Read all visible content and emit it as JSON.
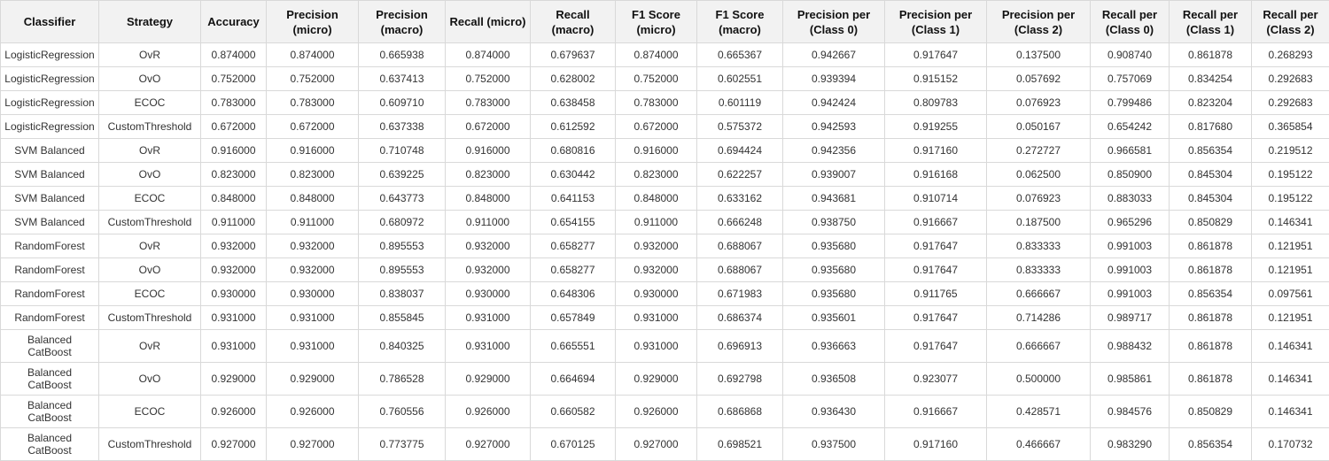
{
  "table": {
    "headers": [
      "Classifier",
      "Strategy",
      "Accuracy",
      "Precision (micro)",
      "Precision (macro)",
      "Recall (micro)",
      "Recall (macro)",
      "F1 Score (micro)",
      "F1 Score (macro)",
      "Precision per (Class 0)",
      "Precision per (Class 1)",
      "Precision per (Class 2)",
      "Recall per (Class 0)",
      "Recall per (Class 1)",
      "Recall per (Class 2)"
    ],
    "rows": [
      [
        "LogisticRegression",
        "OvR",
        "0.874000",
        "0.874000",
        "0.665938",
        "0.874000",
        "0.679637",
        "0.874000",
        "0.665367",
        "0.942667",
        "0.917647",
        "0.137500",
        "0.908740",
        "0.861878",
        "0.268293"
      ],
      [
        "LogisticRegression",
        "OvO",
        "0.752000",
        "0.752000",
        "0.637413",
        "0.752000",
        "0.628002",
        "0.752000",
        "0.602551",
        "0.939394",
        "0.915152",
        "0.057692",
        "0.757069",
        "0.834254",
        "0.292683"
      ],
      [
        "LogisticRegression",
        "ECOC",
        "0.783000",
        "0.783000",
        "0.609710",
        "0.783000",
        "0.638458",
        "0.783000",
        "0.601119",
        "0.942424",
        "0.809783",
        "0.076923",
        "0.799486",
        "0.823204",
        "0.292683"
      ],
      [
        "LogisticRegression",
        "CustomThreshold",
        "0.672000",
        "0.672000",
        "0.637338",
        "0.672000",
        "0.612592",
        "0.672000",
        "0.575372",
        "0.942593",
        "0.919255",
        "0.050167",
        "0.654242",
        "0.817680",
        "0.365854"
      ],
      [
        "SVM Balanced",
        "OvR",
        "0.916000",
        "0.916000",
        "0.710748",
        "0.916000",
        "0.680816",
        "0.916000",
        "0.694424",
        "0.942356",
        "0.917160",
        "0.272727",
        "0.966581",
        "0.856354",
        "0.219512"
      ],
      [
        "SVM Balanced",
        "OvO",
        "0.823000",
        "0.823000",
        "0.639225",
        "0.823000",
        "0.630442",
        "0.823000",
        "0.622257",
        "0.939007",
        "0.916168",
        "0.062500",
        "0.850900",
        "0.845304",
        "0.195122"
      ],
      [
        "SVM Balanced",
        "ECOC",
        "0.848000",
        "0.848000",
        "0.643773",
        "0.848000",
        "0.641153",
        "0.848000",
        "0.633162",
        "0.943681",
        "0.910714",
        "0.076923",
        "0.883033",
        "0.845304",
        "0.195122"
      ],
      [
        "SVM Balanced",
        "CustomThreshold",
        "0.911000",
        "0.911000",
        "0.680972",
        "0.911000",
        "0.654155",
        "0.911000",
        "0.666248",
        "0.938750",
        "0.916667",
        "0.187500",
        "0.965296",
        "0.850829",
        "0.146341"
      ],
      [
        "RandomForest",
        "OvR",
        "0.932000",
        "0.932000",
        "0.895553",
        "0.932000",
        "0.658277",
        "0.932000",
        "0.688067",
        "0.935680",
        "0.917647",
        "0.833333",
        "0.991003",
        "0.861878",
        "0.121951"
      ],
      [
        "RandomForest",
        "OvO",
        "0.932000",
        "0.932000",
        "0.895553",
        "0.932000",
        "0.658277",
        "0.932000",
        "0.688067",
        "0.935680",
        "0.917647",
        "0.833333",
        "0.991003",
        "0.861878",
        "0.121951"
      ],
      [
        "RandomForest",
        "ECOC",
        "0.930000",
        "0.930000",
        "0.838037",
        "0.930000",
        "0.648306",
        "0.930000",
        "0.671983",
        "0.935680",
        "0.911765",
        "0.666667",
        "0.991003",
        "0.856354",
        "0.097561"
      ],
      [
        "RandomForest",
        "CustomThreshold",
        "0.931000",
        "0.931000",
        "0.855845",
        "0.931000",
        "0.657849",
        "0.931000",
        "0.686374",
        "0.935601",
        "0.917647",
        "0.714286",
        "0.989717",
        "0.861878",
        "0.121951"
      ],
      [
        "Balanced CatBoost",
        "OvR",
        "0.931000",
        "0.931000",
        "0.840325",
        "0.931000",
        "0.665551",
        "0.931000",
        "0.696913",
        "0.936663",
        "0.917647",
        "0.666667",
        "0.988432",
        "0.861878",
        "0.146341"
      ],
      [
        "Balanced CatBoost",
        "OvO",
        "0.929000",
        "0.929000",
        "0.786528",
        "0.929000",
        "0.664694",
        "0.929000",
        "0.692798",
        "0.936508",
        "0.923077",
        "0.500000",
        "0.985861",
        "0.861878",
        "0.146341"
      ],
      [
        "Balanced CatBoost",
        "ECOC",
        "0.926000",
        "0.926000",
        "0.760556",
        "0.926000",
        "0.660582",
        "0.926000",
        "0.686868",
        "0.936430",
        "0.916667",
        "0.428571",
        "0.984576",
        "0.850829",
        "0.146341"
      ],
      [
        "Balanced CatBoost",
        "CustomThreshold",
        "0.927000",
        "0.927000",
        "0.773775",
        "0.927000",
        "0.670125",
        "0.927000",
        "0.698521",
        "0.937500",
        "0.917160",
        "0.466667",
        "0.983290",
        "0.856354",
        "0.170732"
      ]
    ]
  }
}
